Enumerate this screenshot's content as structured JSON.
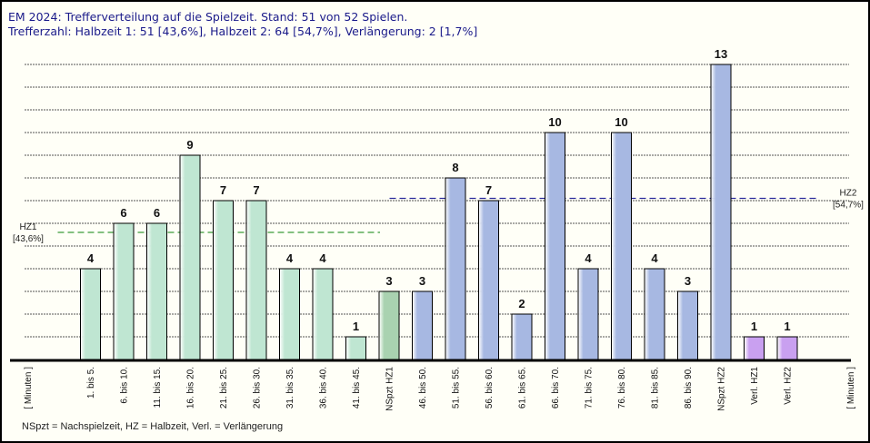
{
  "header": {
    "title": "EM 2024: Trefferverteilung auf die Spielzeit. Stand: 51 von 52 Spielen.",
    "subtitle": "Trefferzahl: Halbzeit 1: 51 [43,6%], Halbzeit 2: 64 [54,7%], Verlängerung: 2 [1,7%]"
  },
  "footnote": "NSpzt = Nachspielzeit, HZ = Halbzeit, Verl. = Verlängerung",
  "chart_data": {
    "type": "bar",
    "title": "EM 2024: Trefferverteilung auf die Spielzeit. Stand: 51 von 52 Spielen.",
    "subtitle": "Trefferzahl: Halbzeit 1: 51 [43,6%], Halbzeit 2: 64 [54,7%], Verlängerung: 2 [1,7%]",
    "xlabel_left": "[ Minuten ]",
    "xlabel_right": "[ Minuten ]",
    "categories": [
      "1. bis 5.",
      "6. bis 10.",
      "11. bis 15.",
      "16. bis 20.",
      "21. bis 25.",
      "26. bis 30.",
      "31. bis 35.",
      "36. bis 40.",
      "41. bis 45.",
      "NSpzt HZ1",
      "46. bis 50.",
      "51. bis 55.",
      "56. bis 60.",
      "61. bis 65.",
      "66. bis 70.",
      "71. bis 75.",
      "76. bis 80.",
      "81. bis 85.",
      "86. bis 90.",
      "NSpzt HZ2",
      "Verl. HZ1",
      "Verl. HZ2"
    ],
    "values": [
      4,
      6,
      6,
      9,
      7,
      7,
      4,
      4,
      1,
      3,
      3,
      8,
      7,
      2,
      10,
      4,
      10,
      4,
      3,
      13,
      1,
      1
    ],
    "groups": [
      "hz1",
      "hz1",
      "hz1",
      "hz1",
      "hz1",
      "hz1",
      "hz1",
      "hz1",
      "hz1",
      "hz1nsp",
      "hz2",
      "hz2",
      "hz2",
      "hz2",
      "hz2",
      "hz2",
      "hz2",
      "hz2",
      "hz2",
      "hz2",
      "verl",
      "verl"
    ],
    "ylim": [
      0,
      13
    ],
    "grid": true,
    "colors": {
      "hz1": "#bfe6d2",
      "hz1nsp": "#a9d2b0",
      "hz2": "#a7b8e2",
      "verl": "#c9a0f0",
      "hz1_line": "#3a9a3a",
      "hz2_line": "#2a2a9a"
    },
    "reference_lines": [
      {
        "label": "HZ1",
        "value_label": "[43,6%]",
        "y": 5.6,
        "group": "hz1"
      },
      {
        "label": "HZ2",
        "value_label": "[54,7%]",
        "y": 7.1,
        "group": "hz2"
      }
    ]
  }
}
